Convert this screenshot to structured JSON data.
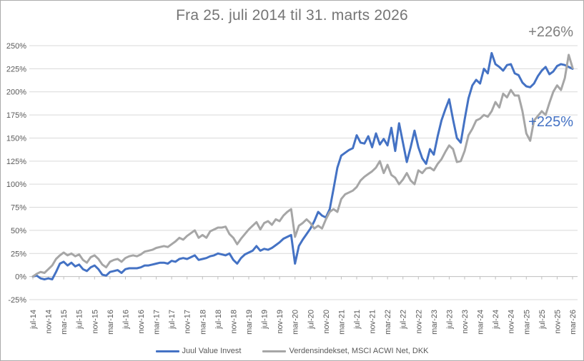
{
  "title": "Fra 25. juli 2014 til 31. marts 2026",
  "annotations": {
    "index_end": "+226%",
    "juul_end": "+225%"
  },
  "legend": {
    "items": [
      {
        "label": "Juul Value Invest",
        "color": "#4472c4"
      },
      {
        "label": "Verdensindekset, MSCI ACWI Net, DKK",
        "color": "#a6a6a6"
      }
    ]
  },
  "colors": {
    "juul_line": "#4472c4",
    "index_line": "#a6a6a6",
    "gridline": "#d9d9d9",
    "axis_line": "#bfbfbf",
    "axis_text": "#595959",
    "title_text": "#757575"
  },
  "chart_data": {
    "type": "line",
    "title": "Fra 25. juli 2014 til 31. marts 2026",
    "grid": true,
    "legend_position": "bottom",
    "x_axis": {
      "tick_labels": [
        "jul-14",
        "nov-14",
        "mar-15",
        "jul-15",
        "nov-15",
        "mar-16",
        "jul-16",
        "nov-16",
        "mar-17",
        "jul-17",
        "nov-17",
        "mar-18",
        "jul-18",
        "nov-18",
        "mar-19",
        "jul-19",
        "nov-19",
        "mar-20",
        "jul-20",
        "nov-20",
        "mar-21",
        "jul-21",
        "nov-21",
        "mar-22",
        "jul-22",
        "nov-22",
        "mar-23",
        "jul-23",
        "nov-23",
        "mar-24",
        "jul-24",
        "nov-24",
        "mar-25",
        "jul-25",
        "nov-25",
        "mar-26"
      ],
      "months_per_tick": 4
    },
    "y_axis": {
      "min": -25,
      "max": 250,
      "step": 25,
      "format": "percent",
      "tick_labels": [
        "250%",
        "225%",
        "200%",
        "175%",
        "150%",
        "125%",
        "100%",
        "75%",
        "50%",
        "25%",
        "0%",
        "-25%"
      ]
    },
    "series": [
      {
        "name": "Juul Value Invest",
        "color": "#4472c4",
        "end_label": "+225%",
        "values": [
          0,
          1,
          -2,
          -3,
          -2,
          -3,
          5,
          14,
          16,
          12,
          15,
          11,
          13,
          8,
          6,
          10,
          12,
          8,
          2,
          1,
          5,
          6,
          7,
          4,
          8,
          9,
          9,
          9,
          10,
          12,
          12,
          13,
          14,
          15,
          15,
          14,
          17,
          16,
          19,
          20,
          19,
          21,
          23,
          18,
          19,
          20,
          22,
          23,
          25,
          24,
          23,
          25,
          18,
          14,
          20,
          24,
          26,
          28,
          33,
          28,
          30,
          29,
          31,
          34,
          37,
          41,
          43,
          45,
          14,
          33,
          40,
          46,
          52,
          60,
          70,
          66,
          64,
          73,
          95,
          118,
          131,
          134,
          137,
          139,
          153,
          145,
          144,
          152,
          140,
          155,
          143,
          149,
          142,
          161,
          136,
          166,
          145,
          124,
          140,
          158,
          140,
          128,
          122,
          138,
          132,
          152,
          169,
          181,
          192,
          170,
          150,
          145,
          170,
          193,
          207,
          213,
          209,
          225,
          220,
          242,
          230,
          227,
          223,
          229,
          230,
          220,
          218,
          210,
          206,
          205,
          209,
          217,
          223,
          227,
          219,
          222,
          228,
          230,
          229,
          227,
          225
        ]
      },
      {
        "name": "Verdensindekset, MSCI ACWI Net, DKK",
        "color": "#a6a6a6",
        "end_label": "+226%",
        "values": [
          0,
          3,
          5,
          4,
          8,
          12,
          19,
          23,
          26,
          23,
          25,
          22,
          24,
          18,
          15,
          21,
          23,
          19,
          13,
          10,
          16,
          18,
          19,
          16,
          20,
          22,
          23,
          22,
          24,
          27,
          28,
          29,
          31,
          32,
          33,
          32,
          35,
          38,
          42,
          40,
          44,
          47,
          50,
          42,
          45,
          42,
          49,
          51,
          53,
          53,
          54,
          46,
          42,
          35,
          41,
          46,
          51,
          55,
          59,
          51,
          58,
          60,
          56,
          62,
          60,
          66,
          70,
          73,
          43,
          55,
          58,
          62,
          58,
          52,
          55,
          52,
          62,
          70,
          73,
          70,
          84,
          89,
          91,
          93,
          97,
          104,
          108,
          111,
          114,
          118,
          125,
          112,
          121,
          110,
          107,
          100,
          105,
          112,
          104,
          100,
          115,
          112,
          117,
          118,
          115,
          122,
          127,
          135,
          142,
          138,
          124,
          125,
          136,
          153,
          160,
          169,
          171,
          175,
          173,
          179,
          189,
          183,
          198,
          194,
          202,
          196,
          196,
          179,
          155,
          147,
          169,
          174,
          179,
          175,
          188,
          200,
          207,
          202,
          215,
          240,
          226
        ]
      }
    ]
  }
}
